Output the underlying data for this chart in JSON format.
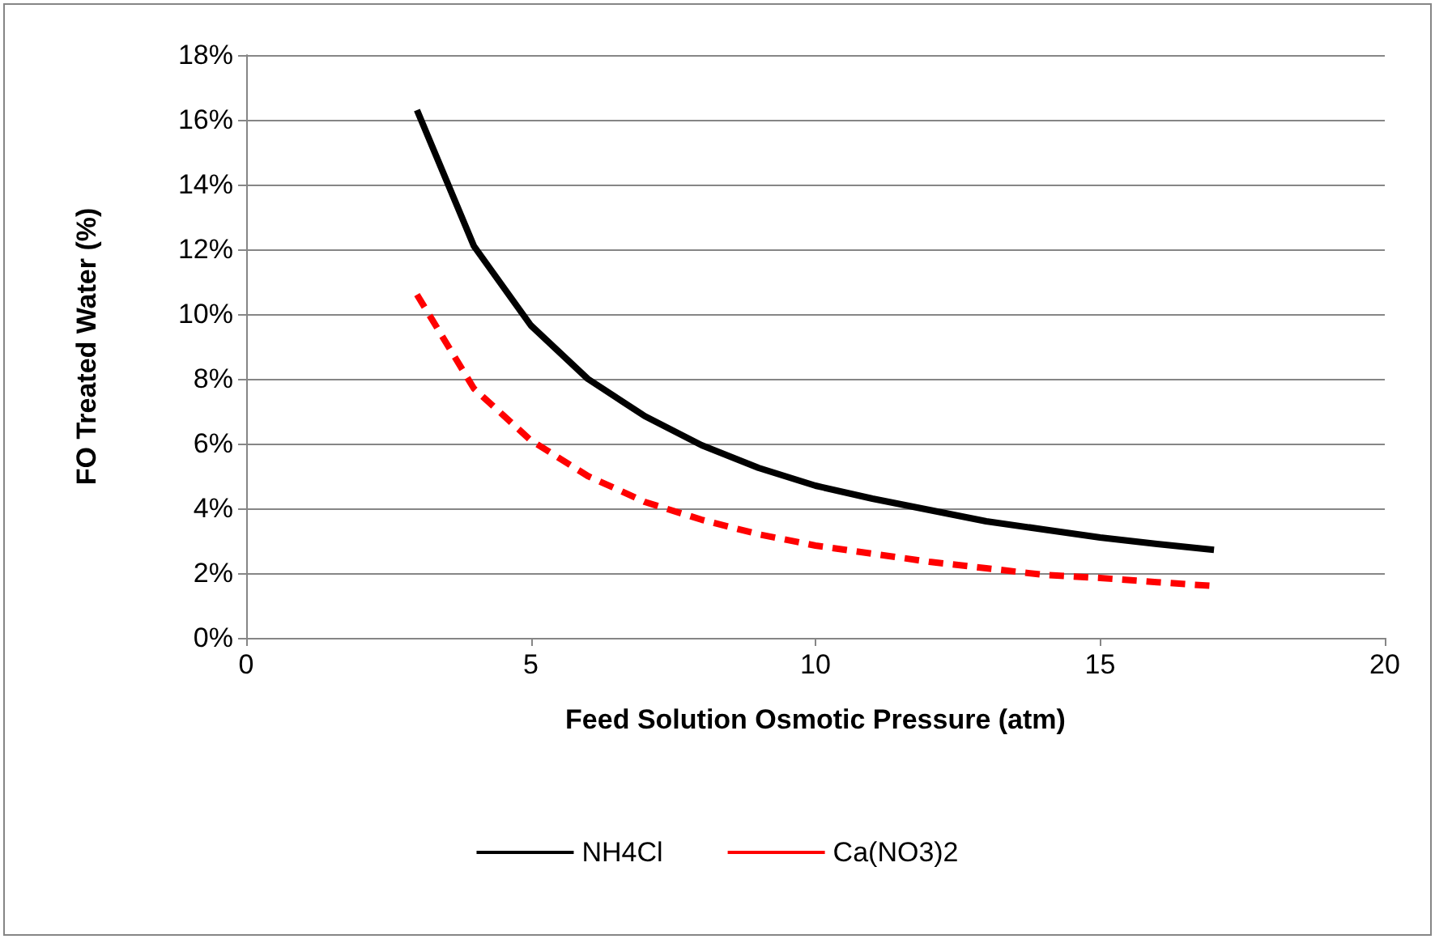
{
  "chart_data": {
    "type": "line",
    "xlabel": "Feed Solution Osmotic Pressure (atm)",
    "ylabel": "FO Treated Water (%)",
    "x": [
      3,
      4,
      5,
      6,
      7,
      8,
      9,
      10,
      11,
      12,
      13,
      14,
      15,
      16,
      17
    ],
    "series": [
      {
        "name": "NH4Cl",
        "color": "#000000",
        "line_style": "solid",
        "values": [
          16.3,
          12.1,
          9.65,
          8.0,
          6.85,
          5.95,
          5.25,
          4.7,
          4.3,
          3.95,
          3.6,
          3.35,
          3.1,
          2.9,
          2.72
        ]
      },
      {
        "name": "Ca(NO3)2",
        "color": "#ff0000",
        "line_style": "dashed",
        "values": [
          10.6,
          7.7,
          6.1,
          5.0,
          4.2,
          3.65,
          3.2,
          2.85,
          2.6,
          2.35,
          2.15,
          1.95,
          1.85,
          1.72,
          1.6
        ]
      }
    ],
    "xlim": [
      0,
      20
    ],
    "xticks": [
      0,
      5,
      10,
      15,
      20
    ],
    "ylim": [
      0,
      18
    ],
    "yticks": [
      {
        "value": 0,
        "label": "0%"
      },
      {
        "value": 2,
        "label": "2%"
      },
      {
        "value": 4,
        "label": "4%"
      },
      {
        "value": 6,
        "label": "6%"
      },
      {
        "value": 8,
        "label": "8%"
      },
      {
        "value": 10,
        "label": "10%"
      },
      {
        "value": 12,
        "label": "12%"
      },
      {
        "value": 14,
        "label": "14%"
      },
      {
        "value": 16,
        "label": "16%"
      },
      {
        "value": 18,
        "label": "18%"
      }
    ],
    "grid": "y",
    "legend": "bottom",
    "marker": "none"
  }
}
